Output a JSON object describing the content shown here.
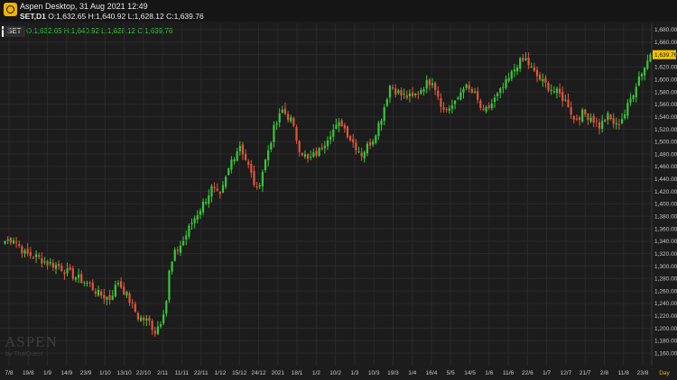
{
  "app": {
    "title": "Aspen Desktop, 31 Aug 2021 12:49",
    "symbol": "SET,D1",
    "ohlc_text": "O:1,632.65 H:1,640.92 L:1,628.12 C:1,639.76",
    "series_tag": "SET",
    "ohlc_green_text": "O:1,632.65 H:1,640.92 L:1,628.12 C:1,639.76",
    "watermark": "ASPEN",
    "watermark_sub": "by ThaiQuest",
    "icon": "aspen-logo-icon"
  },
  "colors": {
    "up": "#37c837",
    "down": "#e2553c",
    "last_price_label": "#f5c400",
    "background": "#1c1c1c",
    "grid": "#2a2a2a"
  },
  "chart_data": {
    "type": "candlestick",
    "timeframe": "Daily",
    "timeframe_label": "Day",
    "ylim": [
      1140,
      1690
    ],
    "y_ticks": [
      1160,
      1180,
      1200,
      1220,
      1240,
      1260,
      1280,
      1300,
      1320,
      1340,
      1360,
      1380,
      1400,
      1420,
      1440,
      1460,
      1480,
      1500,
      1520,
      1540,
      1560,
      1580,
      1600,
      1620,
      1640,
      1660,
      1680
    ],
    "x_ticks": [
      "7/8",
      "19/8",
      "1/9",
      "14/9",
      "23/9",
      "1/10",
      "13/10",
      "22/10",
      "2/11",
      "11/11",
      "22/11",
      "1/12",
      "15/12",
      "24/12",
      "2021",
      "18/1",
      "1/2",
      "10/2",
      "1/3",
      "10/3",
      "19/3",
      "1/4",
      "16/4",
      "5/5",
      "14/5",
      "1/6",
      "11/6",
      "22/6",
      "1/7",
      "12/7",
      "21/7",
      "2/8",
      "11/8",
      "23/8"
    ],
    "last_price": 1639.76,
    "last_price_label": "1,639.76",
    "close_anchors": [
      [
        0,
        1340
      ],
      [
        3,
        1345
      ],
      [
        7,
        1320
      ],
      [
        11,
        1315
      ],
      [
        15,
        1305
      ],
      [
        19,
        1300
      ],
      [
        22,
        1290
      ],
      [
        26,
        1280
      ],
      [
        30,
        1270
      ],
      [
        33,
        1255
      ],
      [
        37,
        1248
      ],
      [
        40,
        1275
      ],
      [
        44,
        1245
      ],
      [
        47,
        1218
      ],
      [
        51,
        1210
      ],
      [
        53,
        1195
      ],
      [
        55,
        1212
      ],
      [
        57,
        1245
      ],
      [
        58,
        1290
      ],
      [
        60,
        1320
      ],
      [
        63,
        1340
      ],
      [
        66,
        1370
      ],
      [
        70,
        1400
      ],
      [
        73,
        1425
      ],
      [
        76,
        1410
      ],
      [
        80,
        1470
      ],
      [
        83,
        1495
      ],
      [
        86,
        1460
      ],
      [
        89,
        1420
      ],
      [
        92,
        1470
      ],
      [
        95,
        1520
      ],
      [
        98,
        1550
      ],
      [
        101,
        1535
      ],
      [
        104,
        1490
      ],
      [
        107,
        1470
      ],
      [
        111,
        1485
      ],
      [
        115,
        1515
      ],
      [
        119,
        1530
      ],
      [
        122,
        1505
      ],
      [
        126,
        1480
      ],
      [
        130,
        1505
      ],
      [
        133,
        1540
      ],
      [
        136,
        1590
      ],
      [
        140,
        1575
      ],
      [
        144,
        1570
      ],
      [
        148,
        1590
      ],
      [
        151,
        1600
      ],
      [
        155,
        1550
      ],
      [
        159,
        1560
      ],
      [
        162,
        1590
      ],
      [
        166,
        1575
      ],
      [
        169,
        1545
      ],
      [
        171,
        1555
      ],
      [
        175,
        1580
      ],
      [
        178,
        1600
      ],
      [
        181,
        1625
      ],
      [
        184,
        1632
      ],
      [
        187,
        1610
      ],
      [
        190,
        1595
      ],
      [
        193,
        1585
      ],
      [
        196,
        1575
      ],
      [
        199,
        1560
      ],
      [
        201,
        1535
      ],
      [
        204,
        1545
      ],
      [
        207,
        1540
      ],
      [
        210,
        1525
      ],
      [
        213,
        1540
      ],
      [
        216,
        1525
      ],
      [
        219,
        1545
      ],
      [
        222,
        1580
      ],
      [
        224,
        1605
      ],
      [
        226,
        1620
      ],
      [
        228,
        1640
      ]
    ]
  }
}
